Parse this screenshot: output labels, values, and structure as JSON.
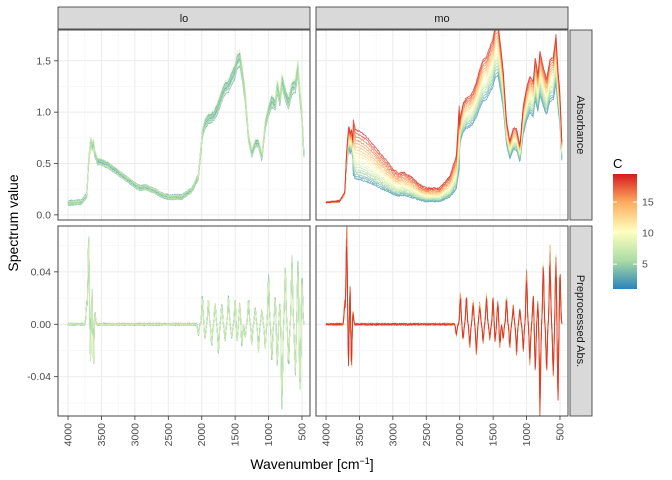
{
  "colors": {
    "strip_fill": "#d9d9d9",
    "panel_border": "#333333",
    "grid_major": "#ebebeb",
    "grid_minor": "#f4f4f4",
    "scale": [
      "#2b83ba",
      "#abdda4",
      "#ffffbf",
      "#fdae61",
      "#d7191c"
    ]
  },
  "chart_data": {
    "type": "line",
    "xlabel": "Wavenumber [cm",
    "xlabel_sup": "−1",
    "xlabel_end": "]",
    "ylabel": "Spectrum value",
    "x_reversed": true,
    "xlim": [
      4150,
      380
    ],
    "x_ticks": [
      "4000",
      "3500",
      "3000",
      "2500",
      "2000",
      "1500",
      "1000",
      "500"
    ],
    "columns": [
      "lo",
      "mo"
    ],
    "rows": [
      "Absorbance",
      "Preprocessed Abs."
    ],
    "rows_ylim": [
      [
        -0.05,
        1.8
      ],
      [
        -0.07,
        0.075
      ]
    ],
    "y_ticks": [
      [
        "0.0",
        "0.5",
        "1.0",
        "1.5"
      ],
      [
        "-0.04",
        "0.00",
        "0.04"
      ]
    ],
    "y_tick_values": [
      [
        0,
        0.5,
        1.0,
        1.5
      ],
      [
        -0.04,
        0,
        0.04
      ]
    ],
    "legend": {
      "title": "C",
      "position": "right",
      "ticks": [
        "5",
        "10",
        "15"
      ],
      "tick_values": [
        5,
        10,
        15
      ],
      "range": [
        1,
        19.5
      ]
    },
    "absorbance_profile": {
      "x": [
        4000,
        3800,
        3720,
        3690,
        3660,
        3640,
        3620,
        3600,
        3560,
        3500,
        3400,
        3200,
        3000,
        2920,
        2850,
        2700,
        2600,
        2500,
        2300,
        2150,
        2050,
        1990,
        1950,
        1900,
        1850,
        1800,
        1750,
        1700,
        1650,
        1600,
        1550,
        1500,
        1470,
        1430,
        1400,
        1350,
        1300,
        1250,
        1200,
        1150,
        1100,
        1050,
        1000,
        950,
        900,
        870,
        830,
        800,
        750,
        700,
        650,
        600,
        560,
        530,
        500,
        470
      ],
      "y": [
        0.12,
        0.13,
        0.2,
        0.55,
        0.75,
        0.68,
        0.72,
        0.62,
        0.54,
        0.53,
        0.5,
        0.4,
        0.3,
        0.27,
        0.28,
        0.24,
        0.2,
        0.18,
        0.18,
        0.25,
        0.38,
        0.82,
        0.92,
        0.97,
        0.98,
        1.02,
        1.1,
        1.2,
        1.28,
        1.3,
        1.38,
        1.45,
        1.55,
        1.58,
        1.45,
        1.2,
        0.78,
        0.62,
        0.72,
        0.72,
        0.58,
        0.9,
        1.05,
        1.15,
        1.1,
        1.3,
        1.15,
        1.35,
        1.22,
        1.12,
        1.28,
        1.3,
        1.48,
        1.2,
        1.0,
        0.58
      ]
    },
    "preprocessed_features": {
      "x": [
        3720,
        3690,
        3665,
        3640,
        3620,
        3600,
        2050,
        1990,
        1950,
        1900,
        1850,
        1800,
        1750,
        1700,
        1650,
        1600,
        1550,
        1500,
        1470,
        1430,
        1400,
        1350,
        1300,
        1250,
        1200,
        1150,
        1100,
        1050,
        1000,
        950,
        900,
        870,
        830,
        800,
        750,
        700,
        650,
        600,
        560,
        530,
        500
      ],
      "y": [
        0.015,
        0.065,
        -0.03,
        0.03,
        -0.035,
        0.012,
        -0.008,
        0.02,
        -0.01,
        0.018,
        -0.015,
        0.015,
        -0.02,
        0.015,
        -0.012,
        0.02,
        -0.01,
        0.018,
        -0.012,
        0.015,
        -0.015,
        -0.01,
        0.018,
        -0.015,
        0.012,
        -0.02,
        0.01,
        -0.018,
        0.035,
        -0.025,
        0.02,
        -0.03,
        0.015,
        -0.06,
        0.04,
        -0.03,
        0.05,
        -0.035,
        0.045,
        -0.05,
        0.035
      ]
    },
    "series": [
      {
        "panel": "lo",
        "C": [
          2,
          2.5,
          3,
          3,
          3.5,
          3.5,
          4,
          4,
          4.5,
          5,
          5.5,
          6,
          7,
          8
        ]
      },
      {
        "panel": "mo",
        "C": [
          2,
          3,
          4,
          5,
          6,
          7,
          8,
          9,
          10,
          11,
          12,
          13,
          14,
          15,
          16,
          17,
          18,
          19
        ]
      }
    ]
  }
}
